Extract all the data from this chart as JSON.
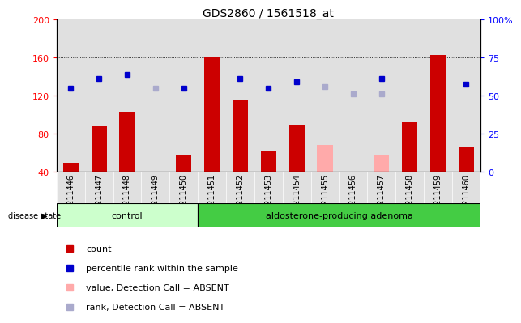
{
  "title": "GDS2860 / 1561518_at",
  "samples": [
    "GSM211446",
    "GSM211447",
    "GSM211448",
    "GSM211449",
    "GSM211450",
    "GSM211451",
    "GSM211452",
    "GSM211453",
    "GSM211454",
    "GSM211455",
    "GSM211456",
    "GSM211457",
    "GSM211458",
    "GSM211459",
    "GSM211460"
  ],
  "count_present": [
    50,
    88,
    103,
    null,
    57,
    160,
    116,
    62,
    90,
    null,
    null,
    null,
    92,
    163,
    67
  ],
  "count_absent": [
    null,
    null,
    null,
    37,
    null,
    null,
    null,
    null,
    null,
    68,
    37,
    57,
    null,
    null,
    null
  ],
  "rank_present": [
    128,
    138,
    142,
    null,
    128,
    null,
    138,
    128,
    135,
    null,
    null,
    138,
    null,
    null,
    132
  ],
  "rank_absent": [
    null,
    null,
    null,
    128,
    null,
    null,
    null,
    null,
    null,
    130,
    122,
    122,
    null,
    null,
    null
  ],
  "control_count": 5,
  "adenoma_count": 10,
  "ylim_left": [
    40,
    200
  ],
  "ylim_right": [
    0,
    100
  ],
  "yticks_left": [
    40,
    80,
    120,
    160,
    200
  ],
  "yticks_right": [
    0,
    25,
    50,
    75,
    100
  ],
  "bar_color_present": "#cc0000",
  "bar_color_absent": "#ffaaaa",
  "dot_color_present": "#0000cc",
  "dot_color_absent": "#aaaacc",
  "control_bg": "#ccffcc",
  "adenoma_bg": "#44cc44",
  "plot_bg": "#e0e0e0",
  "legend_items": [
    "count",
    "percentile rank within the sample",
    "value, Detection Call = ABSENT",
    "rank, Detection Call = ABSENT"
  ],
  "legend_colors": [
    "#cc0000",
    "#0000cc",
    "#ffaaaa",
    "#aaaacc"
  ],
  "dot_marker": "s",
  "dot_size": 5
}
